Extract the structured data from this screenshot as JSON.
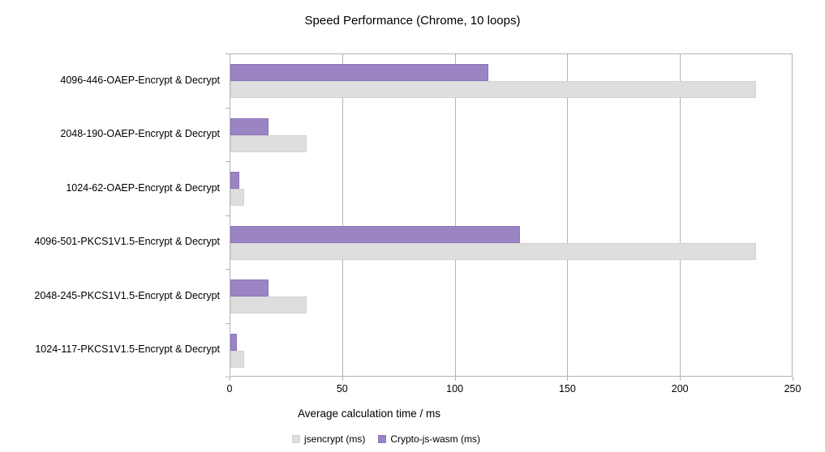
{
  "title": "Speed Performance (Chrome, 10 loops)",
  "colors": {
    "series_jsencrypt": "#dedede",
    "series_crypto_js_wasm": "#9a84c4",
    "grid": "#b3b3b3",
    "text": "#000000",
    "background": "#ffffff"
  },
  "chart_data": {
    "type": "bar",
    "orientation": "horizontal",
    "title": "Speed Performance (Chrome, 10 loops)",
    "xlabel": "Average calculation time / ms",
    "ylabel": "",
    "categories": [
      "4096-446-OAEP-Encrypt & Decrypt",
      "2048-190-OAEP-Encrypt & Decrypt",
      "1024-62-OAEP-Encrypt & Decrypt",
      "4096-501-PKCS1V1.5-Encrypt & Decrypt",
      "2048-245-PKCS1V1.5-Encrypt & Decrypt",
      "1024-117-PKCS1V1.5-Encrypt & Decrypt"
    ],
    "series": [
      {
        "name": "jsencrypt (ms)",
        "color": "#dedede",
        "values": [
          234,
          34,
          6,
          234,
          34,
          6
        ]
      },
      {
        "name": "Crypto-js-wasm (ms)",
        "color": "#9a84c4",
        "values": [
          115,
          17,
          4,
          129,
          17,
          3
        ]
      }
    ],
    "xlim": [
      0,
      250
    ],
    "xticks": [
      0,
      50,
      100,
      150,
      200,
      250
    ],
    "grid": true,
    "legend_position": "bottom"
  }
}
